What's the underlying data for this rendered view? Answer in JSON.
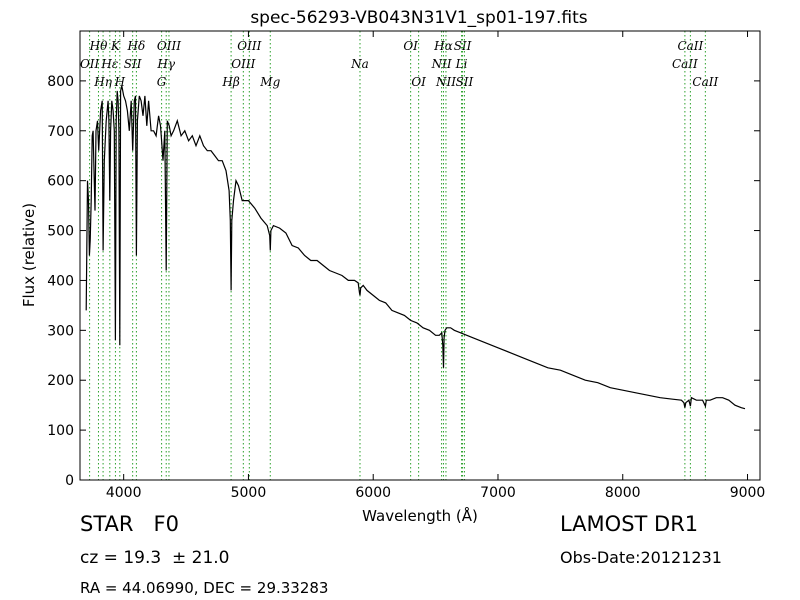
{
  "info": {
    "object_class": "STAR   F0",
    "survey": "LAMOST DR1",
    "redshift": "cz = 19.3  ± 21.0",
    "obs_date": "Obs-Date:20121231",
    "coordinates": "RA = 44.06990, DEC = 29.33283"
  },
  "chart_data": {
    "type": "line",
    "title": "spec-56293-VB043N31V1_sp01-197.fits",
    "xlabel": "Wavelength (Å)",
    "ylabel": "Flux (relative)",
    "xlim": [
      3650,
      9100
    ],
    "ylim": [
      0,
      900
    ],
    "xticks": [
      4000,
      5000,
      6000,
      7000,
      8000,
      9000
    ],
    "yticks": [
      0,
      100,
      200,
      300,
      400,
      500,
      600,
      700,
      800
    ],
    "grid": false,
    "colors": {
      "spectrum": "#000000",
      "lines": "#2ca02c"
    },
    "lines": [
      {
        "label": "OII",
        "x": 3727,
        "row": 2
      },
      {
        "label": "Hθ",
        "x": 3798,
        "row": 1
      },
      {
        "label": "Hη",
        "x": 3835,
        "row": 3
      },
      {
        "label": "Hε",
        "x": 3889,
        "row": 2
      },
      {
        "label": "K",
        "x": 3934,
        "row": 1
      },
      {
        "label": "H",
        "x": 3969,
        "row": 3
      },
      {
        "label": "SII",
        "x": 4072,
        "row": 2
      },
      {
        "label": "Hδ",
        "x": 4102,
        "row": 1
      },
      {
        "label": "G",
        "x": 4304,
        "row": 3
      },
      {
        "label": "Hγ",
        "x": 4341,
        "row": 2
      },
      {
        "label": "OIII",
        "x": 4363,
        "row": 1
      },
      {
        "label": "Hβ",
        "x": 4861,
        "row": 3
      },
      {
        "label": "OIII",
        "x": 4959,
        "row": 2
      },
      {
        "label": "OIII",
        "x": 5007,
        "row": 1
      },
      {
        "label": "Mg",
        "x": 5175,
        "row": 3
      },
      {
        "label": "Na",
        "x": 5894,
        "row": 2
      },
      {
        "label": "OI",
        "x": 6300,
        "row": 1
      },
      {
        "label": "OI",
        "x": 6364,
        "row": 3
      },
      {
        "label": "NII",
        "x": 6548,
        "row": 2
      },
      {
        "label": "Hα",
        "x": 6563,
        "row": 1
      },
      {
        "label": "NII",
        "x": 6583,
        "row": 3
      },
      {
        "label": "Li",
        "x": 6708,
        "row": 2
      },
      {
        "label": "SII",
        "x": 6716,
        "row": 1
      },
      {
        "label": "SII",
        "x": 6731,
        "row": 3
      },
      {
        "label": "CaII",
        "x": 8498,
        "row": 2
      },
      {
        "label": "CaII",
        "x": 8542,
        "row": 1
      },
      {
        "label": "CaII",
        "x": 8662,
        "row": 3
      }
    ],
    "series": [
      {
        "x": [
          3700,
          3710,
          3718,
          3725,
          3732,
          3740,
          3748,
          3755,
          3762,
          3770,
          3778,
          3790,
          3800,
          3815,
          3828,
          3835,
          3845,
          3860,
          3875,
          3882,
          3889,
          3895,
          3905,
          3915,
          3925,
          3934,
          3940,
          3948,
          3955,
          3962,
          3969,
          3975,
          3985,
          4000,
          4015,
          4030,
          4045,
          4060,
          4072,
          4085,
          4095,
          4102,
          4110,
          4125,
          4140,
          4155,
          4170,
          4185,
          4200,
          4220,
          4240,
          4260,
          4280,
          4295,
          4304,
          4315,
          4330,
          4341,
          4350,
          4365,
          4380,
          4400,
          4430,
          4460,
          4490,
          4520,
          4550,
          4580,
          4610,
          4640,
          4670,
          4700,
          4730,
          4760,
          4790,
          4820,
          4845,
          4855,
          4861,
          4867,
          4880,
          4900,
          4920,
          4950,
          5000,
          5050,
          5100,
          5150,
          5170,
          5175,
          5180,
          5200,
          5250,
          5300,
          5350,
          5400,
          5450,
          5500,
          5550,
          5600,
          5650,
          5700,
          5750,
          5800,
          5850,
          5880,
          5890,
          5894,
          5900,
          5920,
          5950,
          6000,
          6050,
          6100,
          6150,
          6200,
          6250,
          6300,
          6350,
          6400,
          6450,
          6500,
          6530,
          6550,
          6558,
          6563,
          6568,
          6575,
          6590,
          6620,
          6650,
          6700,
          6750,
          6800,
          6900,
          7000,
          7100,
          7200,
          7300,
          7400,
          7500,
          7600,
          7700,
          7800,
          7900,
          8000,
          8100,
          8200,
          8300,
          8400,
          8470,
          8490,
          8498,
          8505,
          8530,
          8542,
          8550,
          8590,
          8640,
          8662,
          8670,
          8700,
          8750,
          8800,
          8850,
          8900,
          8950,
          8980
        ],
        "values": [
          340,
          600,
          560,
          450,
          480,
          560,
          690,
          700,
          620,
          540,
          700,
          720,
          660,
          740,
          760,
          460,
          640,
          720,
          760,
          720,
          560,
          700,
          760,
          740,
          700,
          280,
          720,
          780,
          760,
          700,
          270,
          780,
          790,
          770,
          760,
          740,
          700,
          760,
          660,
          760,
          770,
          450,
          720,
          770,
          760,
          730,
          770,
          710,
          760,
          700,
          700,
          690,
          730,
          710,
          680,
          640,
          700,
          420,
          720,
          710,
          690,
          700,
          720,
          690,
          700,
          680,
          690,
          670,
          690,
          670,
          660,
          660,
          650,
          640,
          640,
          620,
          580,
          520,
          380,
          520,
          560,
          600,
          590,
          560,
          560,
          545,
          525,
          510,
          490,
          460,
          500,
          510,
          505,
          495,
          470,
          465,
          450,
          440,
          440,
          430,
          420,
          415,
          410,
          400,
          400,
          395,
          375,
          370,
          385,
          390,
          380,
          370,
          360,
          355,
          340,
          335,
          330,
          320,
          315,
          305,
          300,
          290,
          290,
          295,
          270,
          225,
          285,
          300,
          305,
          305,
          300,
          295,
          290,
          285,
          275,
          265,
          255,
          245,
          235,
          225,
          220,
          210,
          200,
          195,
          185,
          180,
          175,
          170,
          165,
          162,
          160,
          155,
          145,
          155,
          160,
          148,
          165,
          160,
          160,
          148,
          160,
          160,
          165,
          165,
          160,
          150,
          145,
          143
        ]
      }
    ]
  }
}
